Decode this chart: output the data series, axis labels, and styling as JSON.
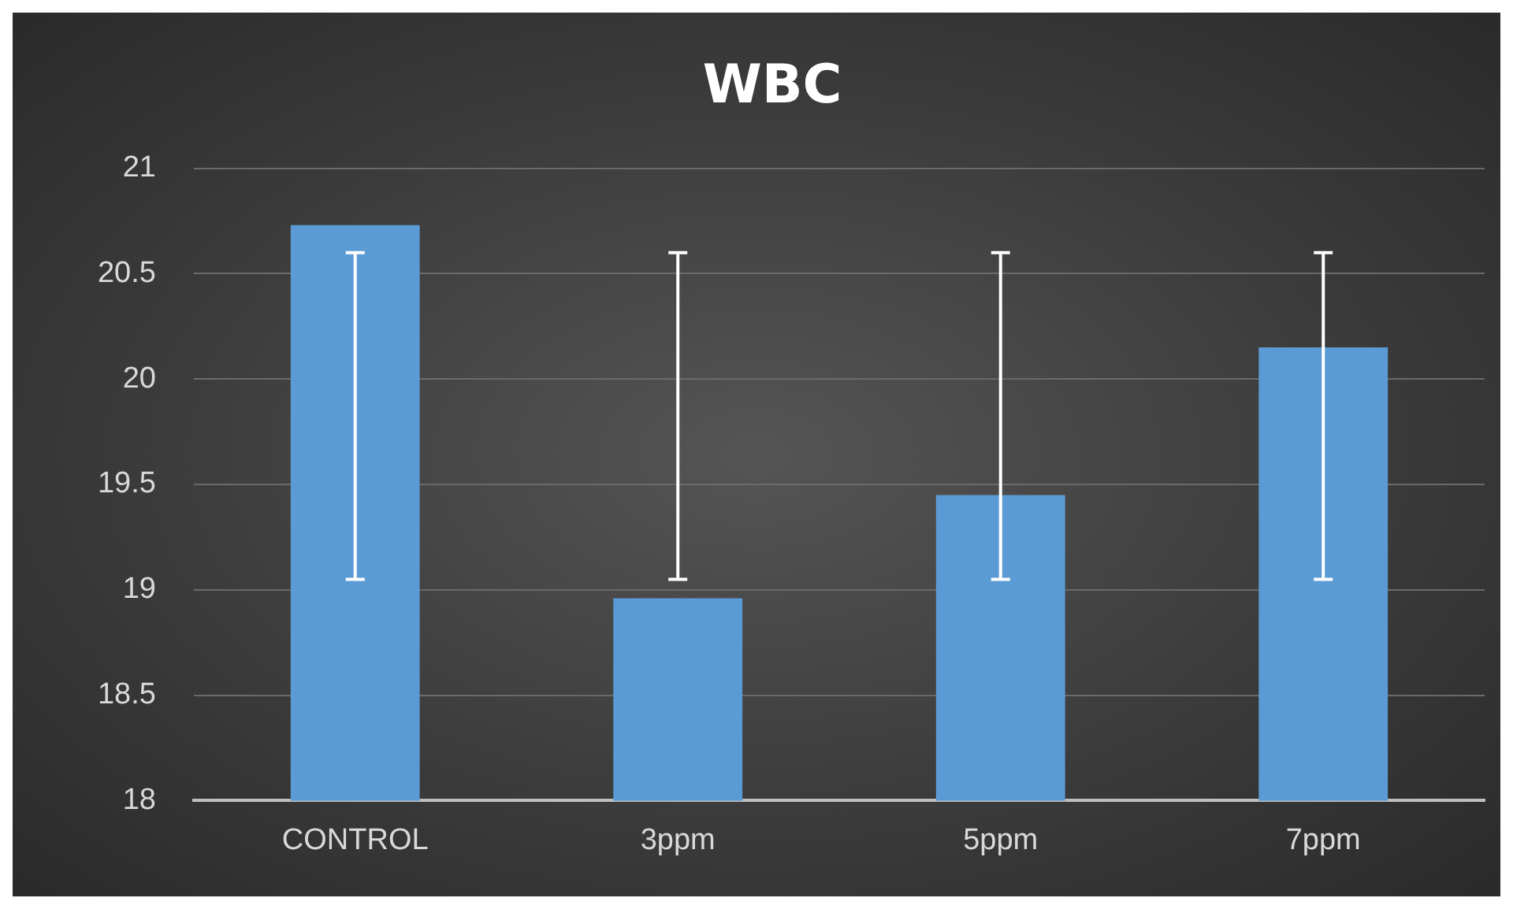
{
  "chart_data": {
    "type": "bar",
    "title": "WBC",
    "categories": [
      "CONTROL",
      "3ppm",
      "5ppm",
      "7ppm"
    ],
    "values": [
      20.73,
      18.96,
      19.45,
      20.15
    ],
    "errors": [
      [
        19.05,
        20.6
      ],
      [
        19.05,
        20.6
      ],
      [
        19.05,
        20.6
      ],
      [
        19.05,
        20.6
      ]
    ],
    "color": "#5b9bd5",
    "ylim": [
      18,
      21
    ],
    "yticks": [
      18,
      18.5,
      19,
      19.5,
      20,
      20.5,
      21
    ],
    "grid": "y",
    "legend": false
  }
}
